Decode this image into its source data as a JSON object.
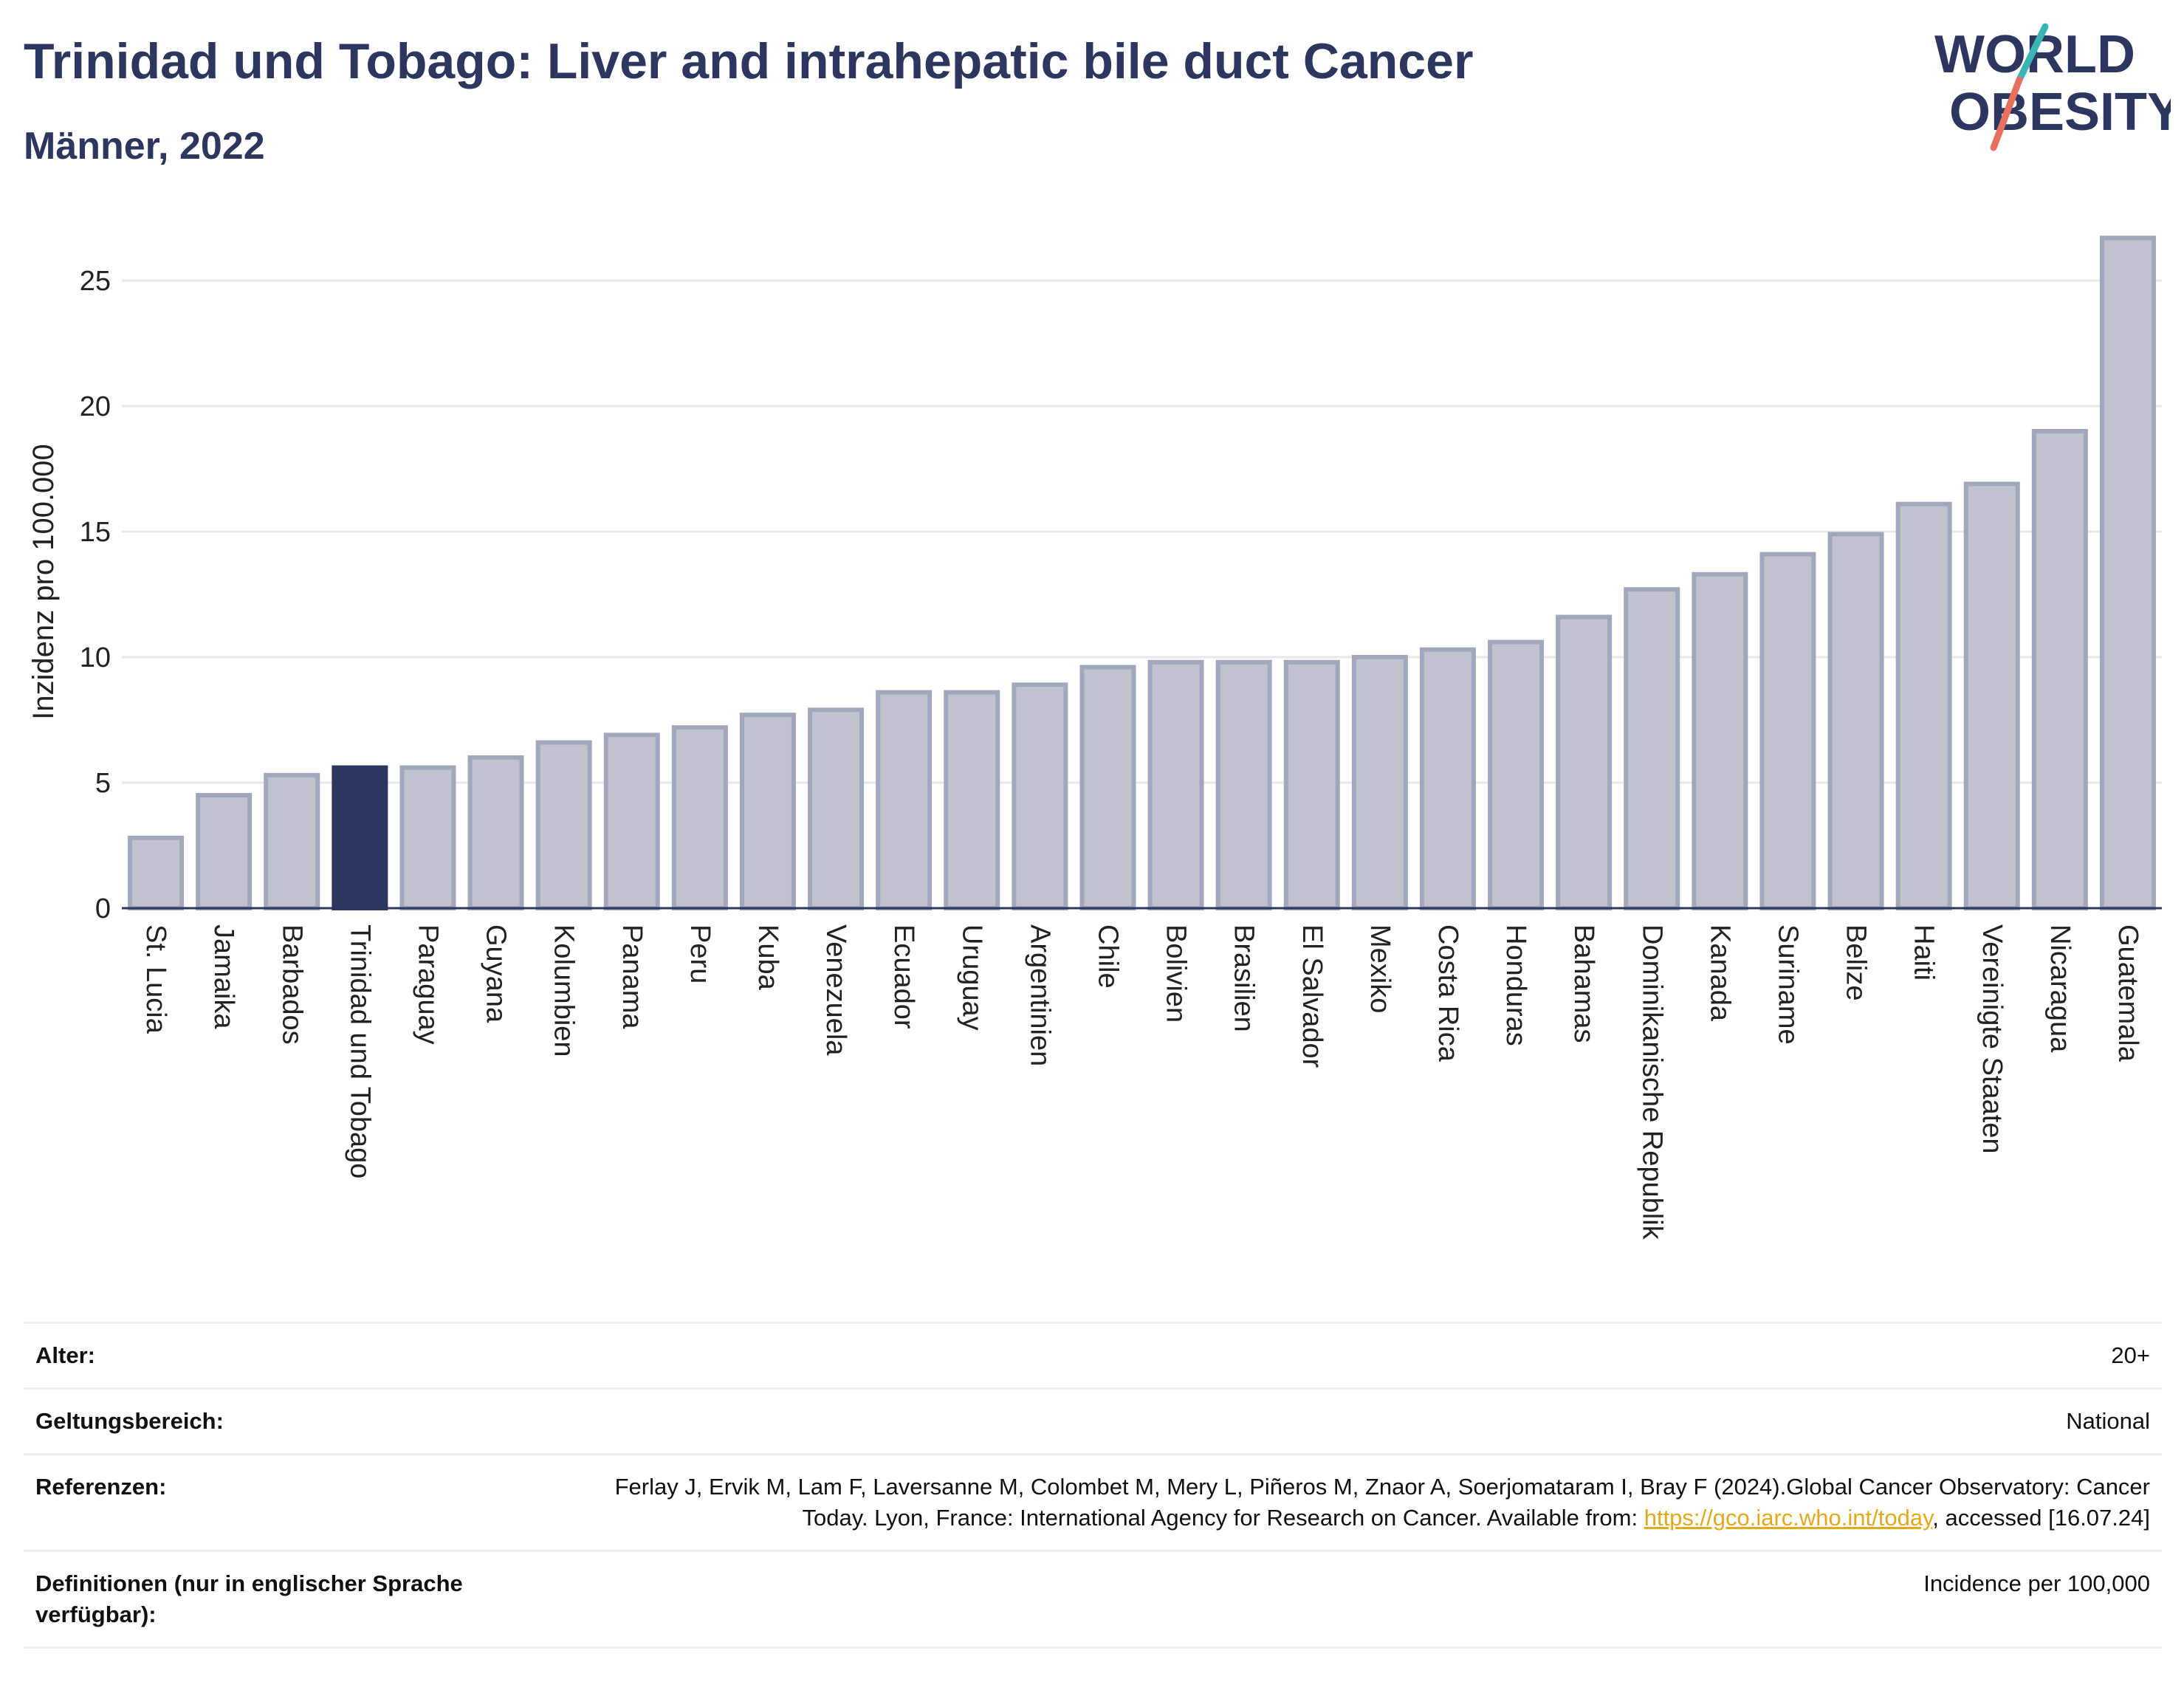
{
  "header": {
    "title": "Trinidad und Tobago: Liver and intrahepatic bile duct Cancer",
    "subtitle": "Männer, 2022"
  },
  "logo": {
    "line1": "WORLD",
    "line2": "OBESITY"
  },
  "colors": {
    "highlight": "#2c365e",
    "bar": "#bfc3d0",
    "bar_edge": "#a2a7bb",
    "text": "#2c365e",
    "logo_teal": "#3bb4b4",
    "logo_coral": "#e8705f"
  },
  "chart_data": {
    "type": "bar",
    "ylabel": "Inzidenz pro 100.000",
    "xlabel": "",
    "ylim": [
      0,
      27
    ],
    "yticks": [
      0,
      5,
      10,
      15,
      20,
      25
    ],
    "grid": true,
    "highlight": "Trinidad und Tobago",
    "categories": [
      "St. Lucia",
      "Jamaika",
      "Barbados",
      "Trinidad und Tobago",
      "Paraguay",
      "Guyana",
      "Kolumbien",
      "Panama",
      "Peru",
      "Kuba",
      "Venezuela",
      "Ecuador",
      "Uruguay",
      "Argentinien",
      "Chile",
      "Bolivien",
      "Brasilien",
      "El Salvador",
      "Mexiko",
      "Costa Rica",
      "Honduras",
      "Bahamas",
      "Dominikanische Republik",
      "Kanada",
      "Suriname",
      "Belize",
      "Haiti",
      "Vereinigte Staaten",
      "Nicaragua",
      "Guatemala"
    ],
    "values": [
      2.8,
      4.5,
      5.3,
      5.6,
      5.6,
      6.0,
      6.6,
      6.9,
      7.2,
      7.7,
      7.9,
      8.6,
      8.6,
      8.9,
      9.6,
      9.8,
      9.8,
      9.8,
      10.0,
      10.3,
      10.6,
      11.6,
      12.7,
      13.3,
      14.1,
      14.9,
      16.1,
      16.9,
      19.0,
      26.7
    ]
  },
  "meta": {
    "age_label": "Alter:",
    "age_value": "20+",
    "scope_label": "Geltungsbereich:",
    "scope_value": "National",
    "refs_label": "Referenzen:",
    "refs_text_1": "Ferlay J, Ervik M, Lam F, Laversanne M, Colombet M, Mery L, Piñeros M, Znaor A, Soerjomataram I, Bray F (2024).Global Cancer Observatory: Cancer Today. Lyon, France: International Agency for Research on Cancer. Available from: ",
    "refs_link": "https://gco.iarc.who.int/today",
    "refs_text_2": ", accessed [16.07.24]",
    "defs_label": "Definitionen (nur in englischer Sprache verfügbar):",
    "defs_value": "Incidence per 100,000"
  }
}
